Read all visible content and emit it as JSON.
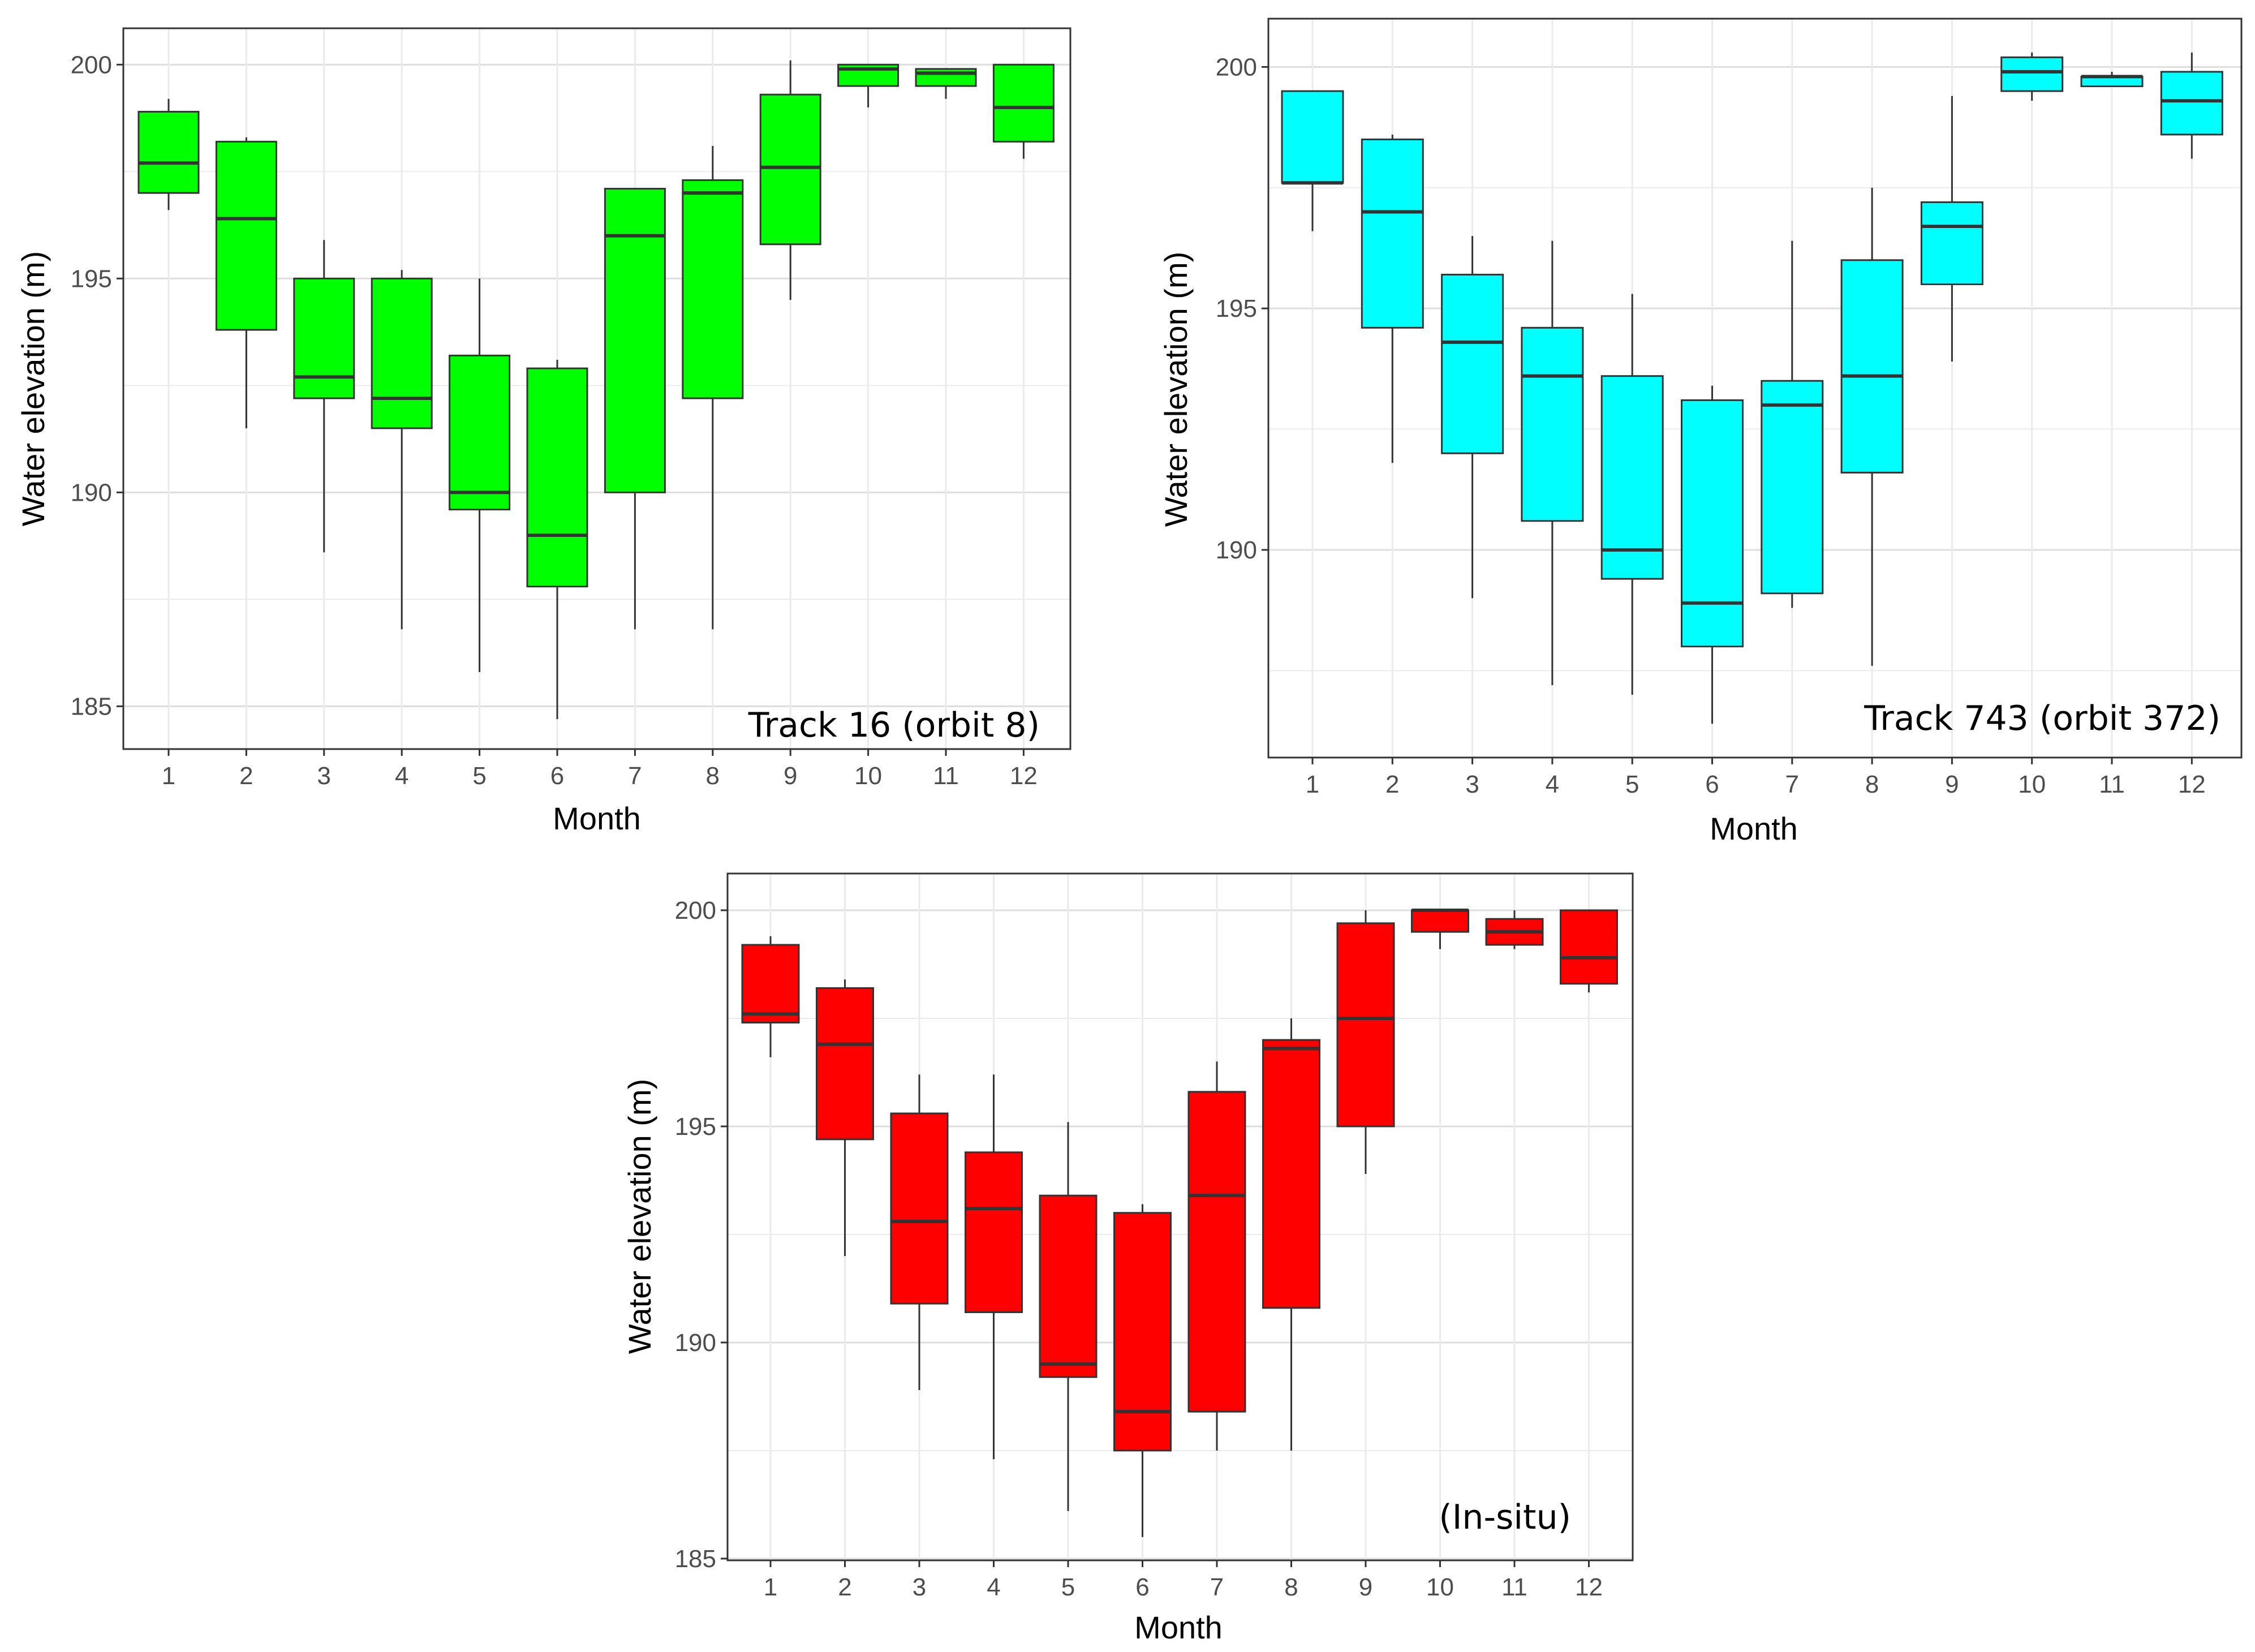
{
  "figure": {
    "y_axis_label": "Water elevation (m)",
    "x_axis_label": "Month"
  },
  "chart_data": [
    {
      "type": "box",
      "id": "track16",
      "annotation": "Track 16 (orbit 8)",
      "fill_color": "#00ff00",
      "xlabel": "Month",
      "ylabel": "Water elevation (m)",
      "ylim": [
        184,
        200.85
      ],
      "yticks": [
        185,
        190,
        195,
        200
      ],
      "categories": [
        "1",
        "2",
        "3",
        "4",
        "5",
        "6",
        "7",
        "8",
        "9",
        "10",
        "11",
        "12"
      ],
      "boxes": [
        {
          "min": 196.6,
          "q1": 197.0,
          "median": 197.7,
          "q3": 198.9,
          "max": 199.2
        },
        {
          "min": 191.5,
          "q1": 193.8,
          "median": 196.4,
          "q3": 198.2,
          "max": 198.3
        },
        {
          "min": 188.6,
          "q1": 192.2,
          "median": 192.7,
          "q3": 195.0,
          "max": 195.9
        },
        {
          "min": 186.8,
          "q1": 191.5,
          "median": 192.2,
          "q3": 195.0,
          "max": 195.2
        },
        {
          "min": 185.8,
          "q1": 189.6,
          "median": 190.0,
          "q3": 193.2,
          "max": 195.0
        },
        {
          "min": 184.7,
          "q1": 187.8,
          "median": 189.0,
          "q3": 192.9,
          "max": 193.1
        },
        {
          "min": 186.8,
          "q1": 190.0,
          "median": 196.0,
          "q3": 197.1,
          "max": 197.1
        },
        {
          "min": 186.8,
          "q1": 192.2,
          "median": 197.0,
          "q3": 197.3,
          "max": 198.1
        },
        {
          "min": 194.5,
          "q1": 195.8,
          "median": 197.6,
          "q3": 199.3,
          "max": 200.1
        },
        {
          "min": 199.0,
          "q1": 199.5,
          "median": 199.9,
          "q3": 200.0,
          "max": 200.0
        },
        {
          "min": 199.2,
          "q1": 199.5,
          "median": 199.8,
          "q3": 199.9,
          "max": 199.9
        },
        {
          "min": 197.8,
          "q1": 198.2,
          "median": 199.0,
          "q3": 200.0,
          "max": 200.0
        }
      ]
    },
    {
      "type": "box",
      "id": "track743",
      "annotation": "Track 743 (orbit 372)",
      "fill_color": "#00ffff",
      "xlabel": "Month",
      "ylabel": "Water elevation (m)",
      "ylim": [
        185.7,
        201.0
      ],
      "yticks": [
        190,
        195,
        200
      ],
      "categories": [
        "1",
        "2",
        "3",
        "4",
        "5",
        "6",
        "7",
        "8",
        "9",
        "10",
        "11",
        "12"
      ],
      "boxes": [
        {
          "min": 196.6,
          "q1": 197.6,
          "median": 197.6,
          "q3": 199.5,
          "max": 199.5
        },
        {
          "min": 191.8,
          "q1": 194.6,
          "median": 197.0,
          "q3": 198.5,
          "max": 198.6
        },
        {
          "min": 189.0,
          "q1": 192.0,
          "median": 194.3,
          "q3": 195.7,
          "max": 196.5
        },
        {
          "min": 187.2,
          "q1": 190.6,
          "median": 193.6,
          "q3": 194.6,
          "max": 196.4
        },
        {
          "min": 187.0,
          "q1": 189.4,
          "median": 190.0,
          "q3": 193.6,
          "max": 195.3
        },
        {
          "min": 186.4,
          "q1": 188.0,
          "median": 188.9,
          "q3": 193.1,
          "max": 193.4
        },
        {
          "min": 188.8,
          "q1": 189.1,
          "median": 193.0,
          "q3": 193.5,
          "max": 196.4
        },
        {
          "min": 187.6,
          "q1": 191.6,
          "median": 193.6,
          "q3": 196.0,
          "max": 197.5
        },
        {
          "min": 193.9,
          "q1": 195.5,
          "median": 196.7,
          "q3": 197.2,
          "max": 199.4
        },
        {
          "min": 199.3,
          "q1": 199.5,
          "median": 199.9,
          "q3": 200.2,
          "max": 200.3
        },
        {
          "min": 199.6,
          "q1": 199.6,
          "median": 199.8,
          "q3": 199.8,
          "max": 199.9
        },
        {
          "min": 198.1,
          "q1": 198.6,
          "median": 199.3,
          "q3": 199.9,
          "max": 200.3
        }
      ]
    },
    {
      "type": "box",
      "id": "insitu",
      "annotation": "(In-situ)",
      "fill_color": "#ff0000",
      "xlabel": "Month",
      "ylabel": "Water elevation (m)",
      "ylim": [
        184.96,
        200.85
      ],
      "yticks": [
        185,
        190,
        195,
        200
      ],
      "categories": [
        "1",
        "2",
        "3",
        "4",
        "5",
        "6",
        "7",
        "8",
        "9",
        "10",
        "11",
        "12"
      ],
      "boxes": [
        {
          "min": 196.6,
          "q1": 197.4,
          "median": 197.6,
          "q3": 199.2,
          "max": 199.4
        },
        {
          "min": 192.0,
          "q1": 194.7,
          "median": 196.9,
          "q3": 198.2,
          "max": 198.4
        },
        {
          "min": 188.9,
          "q1": 190.9,
          "median": 192.8,
          "q3": 195.3,
          "max": 196.2
        },
        {
          "min": 187.3,
          "q1": 190.7,
          "median": 193.1,
          "q3": 194.4,
          "max": 196.2
        },
        {
          "min": 186.1,
          "q1": 189.2,
          "median": 189.5,
          "q3": 193.4,
          "max": 195.1
        },
        {
          "min": 185.5,
          "q1": 187.5,
          "median": 188.4,
          "q3": 193.0,
          "max": 193.2
        },
        {
          "min": 187.5,
          "q1": 188.4,
          "median": 193.4,
          "q3": 195.8,
          "max": 196.5
        },
        {
          "min": 187.5,
          "q1": 190.8,
          "median": 196.8,
          "q3": 197.0,
          "max": 197.5
        },
        {
          "min": 193.9,
          "q1": 195.0,
          "median": 197.5,
          "q3": 199.7,
          "max": 200.0
        },
        {
          "min": 199.1,
          "q1": 199.5,
          "median": 200.0,
          "q3": 200.0,
          "max": 200.0
        },
        {
          "min": 199.1,
          "q1": 199.2,
          "median": 199.5,
          "q3": 199.8,
          "max": 200.0
        },
        {
          "min": 198.1,
          "q1": 198.3,
          "median": 198.9,
          "q3": 200.0,
          "max": 200.0
        }
      ]
    }
  ]
}
